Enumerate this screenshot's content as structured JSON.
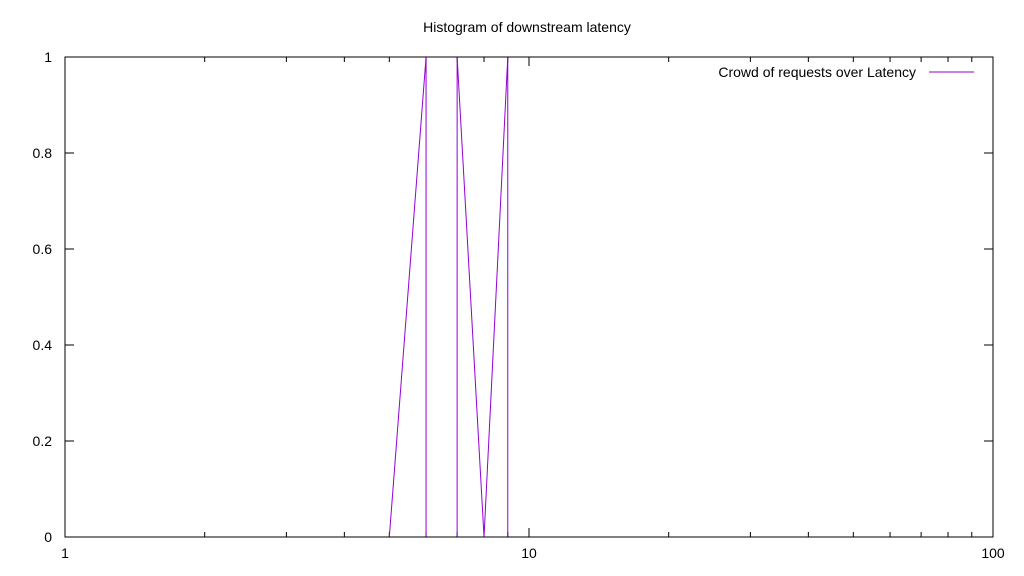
{
  "chart_data": {
    "type": "line",
    "title": "Histogram of downstream latency",
    "xlabel": "",
    "ylabel": "",
    "x_scale": "log",
    "xlim": [
      1,
      100
    ],
    "ylim": [
      0,
      1
    ],
    "x_ticks": [
      {
        "value": 1,
        "label": "1"
      },
      {
        "value": 10,
        "label": "10"
      },
      {
        "value": 100,
        "label": "100"
      }
    ],
    "y_ticks": [
      {
        "value": 0,
        "label": "0"
      },
      {
        "value": 0.2,
        "label": "0.2"
      },
      {
        "value": 0.4,
        "label": "0.4"
      },
      {
        "value": 0.6,
        "label": "0.6"
      },
      {
        "value": 0.8,
        "label": "0.8"
      },
      {
        "value": 1,
        "label": "1"
      }
    ],
    "grid": false,
    "legend_position": "top-right",
    "series": [
      {
        "name": "Crowd of requests over Latency",
        "color": "#9400d3",
        "points": [
          {
            "x": 5,
            "y": 0
          },
          {
            "x": 6,
            "y": 1
          },
          {
            "x": 6,
            "y": 0
          },
          {
            "x": 7,
            "y": 0
          },
          {
            "x": 7,
            "y": 1
          },
          {
            "x": 8,
            "y": 0
          },
          {
            "x": 9,
            "y": 1
          },
          {
            "x": 9,
            "y": 0
          }
        ]
      }
    ]
  }
}
